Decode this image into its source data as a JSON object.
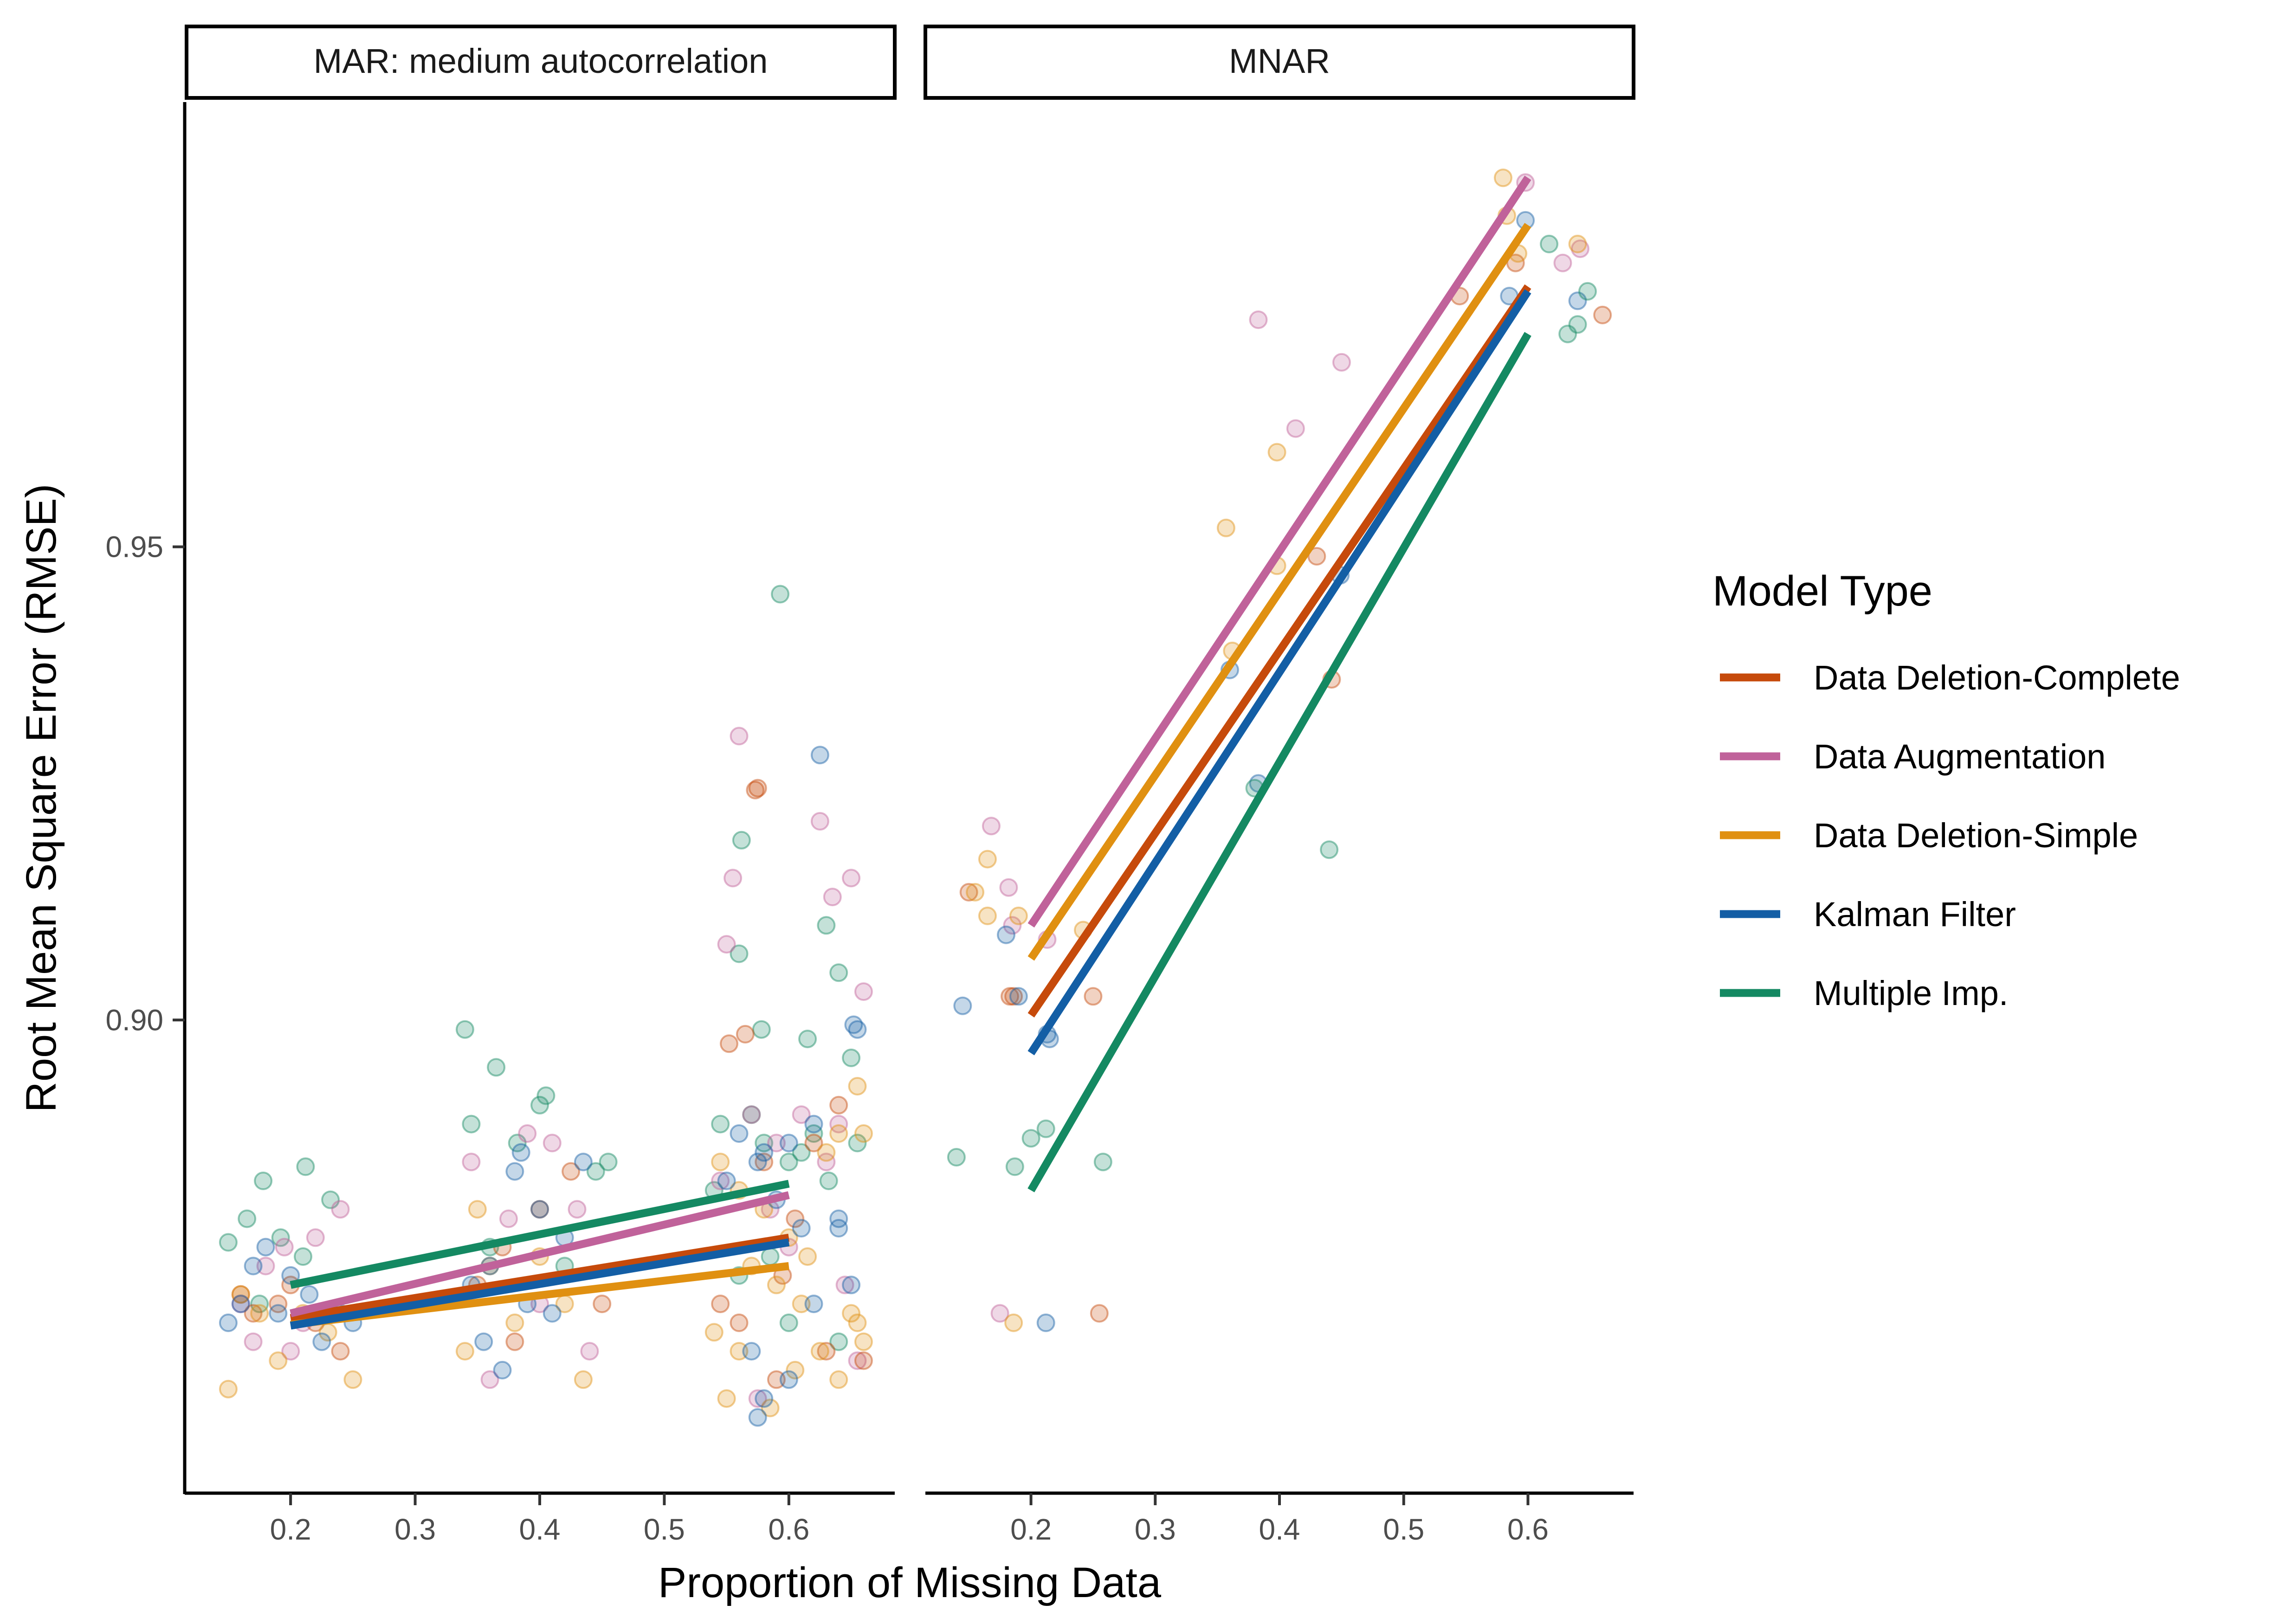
{
  "chart_data": {
    "type": "scatter",
    "xlabel": "Proportion of Missing Data",
    "ylabel": "Root Mean Square Error (RMSE)",
    "ylim": [
      0.85,
      0.997
    ],
    "xlim": [
      0.115,
      0.685
    ],
    "y_ticks": [
      0.9,
      0.95
    ],
    "y_tick_labels": [
      "0.90",
      "0.95"
    ],
    "x_ticks": [
      0.2,
      0.3,
      0.4,
      0.5,
      0.6
    ],
    "x_tick_labels": [
      "0.2",
      "0.3",
      "0.4",
      "0.5",
      "0.6"
    ],
    "grid": false,
    "legend": {
      "title": "Model Type",
      "placement": "right",
      "entries": [
        "Data Deletion-Complete",
        "Data Augmentation",
        "Data Deletion-Simple",
        "Kalman Filter",
        "Multiple Imp."
      ]
    },
    "series": [
      {
        "name": "Data Deletion-Complete",
        "color": "#C64A0B"
      },
      {
        "name": "Data Augmentation",
        "color": "#C0629A"
      },
      {
        "name": "Data Deletion-Simple",
        "color": "#E09011"
      },
      {
        "name": "Kalman Filter",
        "color": "#135EA5"
      },
      {
        "name": "Multiple Imp.",
        "color": "#148962"
      }
    ],
    "panels": [
      {
        "label": "MAR: medium autocorrelation",
        "fit_lines": [
          {
            "series": "Data Deletion-Complete",
            "x": [
              0.2,
              0.6
            ],
            "y": [
              0.8685,
              0.877
            ]
          },
          {
            "series": "Data Augmentation",
            "x": [
              0.2,
              0.6
            ],
            "y": [
              0.869,
              0.8815
            ]
          },
          {
            "series": "Data Deletion-Simple",
            "x": [
              0.2,
              0.6
            ],
            "y": [
              0.8678,
              0.874
            ]
          },
          {
            "series": "Kalman Filter",
            "x": [
              0.2,
              0.6
            ],
            "y": [
              0.8677,
              0.8765
            ]
          },
          {
            "series": "Multiple Imp.",
            "x": [
              0.2,
              0.6
            ],
            "y": [
              0.872,
              0.8827
            ]
          }
        ],
        "points": [
          {
            "series": "Multiple Imp.",
            "x": [
              0.212,
              0.178,
              0.165,
              0.15,
              0.232,
              0.192,
              0.21,
              0.34,
              0.365,
              0.345,
              0.405,
              0.4,
              0.382,
              0.455,
              0.445,
              0.593,
              0.562,
              0.56,
              0.578,
              0.64,
              0.63,
              0.615,
              0.65,
              0.62,
              0.545,
              0.58,
              0.6,
              0.57,
              0.61,
              0.632,
              0.655,
              0.585,
              0.56,
              0.54,
              0.175,
              0.23,
              0.36,
              0.42,
              0.6,
              0.64
            ],
            "y": [
              0.8845,
              0.883,
              0.879,
              0.8765,
              0.881,
              0.877,
              0.875,
              0.899,
              0.895,
              0.889,
              0.892,
              0.891,
              0.887,
              0.885,
              0.884,
              0.945,
              0.919,
              0.907,
              0.899,
              0.905,
              0.91,
              0.898,
              0.896,
              0.888,
              0.889,
              0.887,
              0.885,
              0.89,
              0.886,
              0.883,
              0.887,
              0.875,
              0.873,
              0.882,
              0.87,
              0.869,
              0.876,
              0.874,
              0.868,
              0.866
            ]
          },
          {
            "series": "Data Augmentation",
            "x": [
              0.195,
              0.24,
              0.22,
              0.18,
              0.16,
              0.21,
              0.345,
              0.39,
              0.41,
              0.375,
              0.43,
              0.56,
              0.555,
              0.55,
              0.625,
              0.635,
              0.65,
              0.66,
              0.57,
              0.59,
              0.61,
              0.64,
              0.63,
              0.585,
              0.6,
              0.545,
              0.645,
              0.655,
              0.575,
              0.36,
              0.4,
              0.44,
              0.2,
              0.17
            ],
            "y": [
              0.876,
              0.88,
              0.877,
              0.874,
              0.87,
              0.868,
              0.885,
              0.888,
              0.887,
              0.879,
              0.88,
              0.93,
              0.915,
              0.908,
              0.921,
              0.913,
              0.915,
              0.903,
              0.89,
              0.887,
              0.89,
              0.889,
              0.885,
              0.88,
              0.876,
              0.883,
              0.872,
              0.864,
              0.86,
              0.862,
              0.87,
              0.865,
              0.865,
              0.866
            ]
          },
          {
            "series": "Data Deletion-Complete",
            "x": [
              0.575,
              0.573,
              0.552,
              0.565,
              0.64,
              0.62,
              0.58,
              0.605,
              0.595,
              0.545,
              0.425,
              0.4,
              0.37,
              0.35,
              0.38,
              0.2,
              0.19,
              0.17,
              0.22,
              0.24,
              0.16,
              0.56,
              0.63,
              0.66,
              0.59,
              0.45
            ],
            "y": [
              0.9245,
              0.9243,
              0.8975,
              0.8985,
              0.891,
              0.887,
              0.885,
              0.879,
              0.873,
              0.87,
              0.884,
              0.88,
              0.876,
              0.872,
              0.866,
              0.872,
              0.87,
              0.869,
              0.868,
              0.865,
              0.871,
              0.868,
              0.865,
              0.864,
              0.862,
              0.87
            ]
          },
          {
            "series": "Data Deletion-Simple",
            "x": [
              0.655,
              0.66,
              0.64,
              0.63,
              0.545,
              0.56,
              0.58,
              0.6,
              0.615,
              0.57,
              0.59,
              0.61,
              0.65,
              0.655,
              0.54,
              0.56,
              0.605,
              0.64,
              0.35,
              0.36,
              0.4,
              0.42,
              0.435,
              0.38,
              0.34,
              0.16,
              0.175,
              0.21,
              0.23,
              0.25,
              0.19,
              0.15,
              0.55,
              0.585,
              0.625,
              0.66
            ],
            "y": [
              0.893,
              0.888,
              0.888,
              0.886,
              0.885,
              0.882,
              0.88,
              0.877,
              0.875,
              0.874,
              0.872,
              0.87,
              0.869,
              0.868,
              0.867,
              0.865,
              0.863,
              0.862,
              0.88,
              0.874,
              0.875,
              0.87,
              0.862,
              0.868,
              0.865,
              0.871,
              0.869,
              0.869,
              0.867,
              0.862,
              0.864,
              0.861,
              0.86,
              0.859,
              0.865,
              0.866
            ]
          },
          {
            "series": "Kalman Filter",
            "x": [
              0.625,
              0.652,
              0.655,
              0.62,
              0.6,
              0.58,
              0.575,
              0.56,
              0.55,
              0.59,
              0.61,
              0.64,
              0.57,
              0.6,
              0.58,
              0.575,
              0.385,
              0.38,
              0.435,
              0.4,
              0.42,
              0.36,
              0.345,
              0.39,
              0.41,
              0.37,
              0.355,
              0.18,
              0.17,
              0.2,
              0.215,
              0.16,
              0.15,
              0.19,
              0.24,
              0.25,
              0.225,
              0.62,
              0.65,
              0.64
            ],
            "y": [
              0.928,
              0.8995,
              0.899,
              0.889,
              0.887,
              0.886,
              0.885,
              0.888,
              0.883,
              0.881,
              0.878,
              0.879,
              0.865,
              0.862,
              0.86,
              0.858,
              0.886,
              0.884,
              0.885,
              0.88,
              0.877,
              0.874,
              0.872,
              0.87,
              0.869,
              0.863,
              0.866,
              0.876,
              0.874,
              0.873,
              0.871,
              0.87,
              0.868,
              0.869,
              0.869,
              0.868,
              0.866,
              0.87,
              0.872,
              0.878
            ]
          }
        ]
      },
      {
        "label": "MNAR",
        "fit_lines": [
          {
            "series": "Data Deletion-Complete",
            "x": [
              0.2,
              0.6
            ],
            "y": [
              0.9005,
              0.9775
            ]
          },
          {
            "series": "Data Augmentation",
            "x": [
              0.2,
              0.6
            ],
            "y": [
              0.91,
              0.989
            ]
          },
          {
            "series": "Data Deletion-Simple",
            "x": [
              0.2,
              0.6
            ],
            "y": [
              0.9065,
              0.984
            ]
          },
          {
            "series": "Kalman Filter",
            "x": [
              0.2,
              0.6
            ],
            "y": [
              0.8965,
              0.977
            ]
          },
          {
            "series": "Multiple Imp.",
            "x": [
              0.2,
              0.6
            ],
            "y": [
              0.882,
              0.9725
            ]
          }
        ],
        "points": [
          {
            "series": "Data Deletion-Complete",
            "x": [
              0.15,
              0.183,
              0.186,
              0.25,
              0.255,
              0.442,
              0.43,
              0.545,
              0.59,
              0.66
            ],
            "y": [
              0.9135,
              0.9025,
              0.9025,
              0.9025,
              0.869,
              0.936,
              0.949,
              0.9765,
              0.98,
              0.9745
            ]
          },
          {
            "series": "Data Augmentation",
            "x": [
              0.168,
              0.182,
              0.213,
              0.383,
              0.45,
              0.413,
              0.598,
              0.628,
              0.642,
              0.175,
              0.185
            ],
            "y": [
              0.9205,
              0.914,
              0.9085,
              0.974,
              0.9695,
              0.9625,
              0.9885,
              0.98,
              0.9815,
              0.869,
              0.91
            ]
          },
          {
            "series": "Data Deletion-Simple",
            "x": [
              0.155,
              0.165,
              0.19,
              0.242,
              0.357,
              0.398,
              0.362,
              0.398,
              0.58,
              0.583,
              0.592,
              0.64,
              0.186,
              0.165
            ],
            "y": [
              0.9135,
              0.911,
              0.911,
              0.9095,
              0.952,
              0.96,
              0.939,
              0.948,
              0.989,
              0.985,
              0.981,
              0.982,
              0.868,
              0.917
            ]
          },
          {
            "series": "Kalman Filter",
            "x": [
              0.145,
              0.18,
              0.19,
              0.213,
              0.215,
              0.212,
              0.36,
              0.383,
              0.449,
              0.585,
              0.598,
              0.64
            ],
            "y": [
              0.9015,
              0.909,
              0.9025,
              0.8985,
              0.898,
              0.868,
              0.937,
              0.925,
              0.947,
              0.9765,
              0.9845,
              0.976
            ]
          },
          {
            "series": "Multiple Imp.",
            "x": [
              0.14,
              0.187,
              0.2,
              0.212,
              0.258,
              0.38,
              0.44,
              0.617,
              0.632,
              0.64,
              0.648
            ],
            "y": [
              0.8855,
              0.8845,
              0.8875,
              0.8885,
              0.885,
              0.9245,
              0.918,
              0.982,
              0.9725,
              0.9735,
              0.977
            ]
          }
        ]
      }
    ]
  }
}
